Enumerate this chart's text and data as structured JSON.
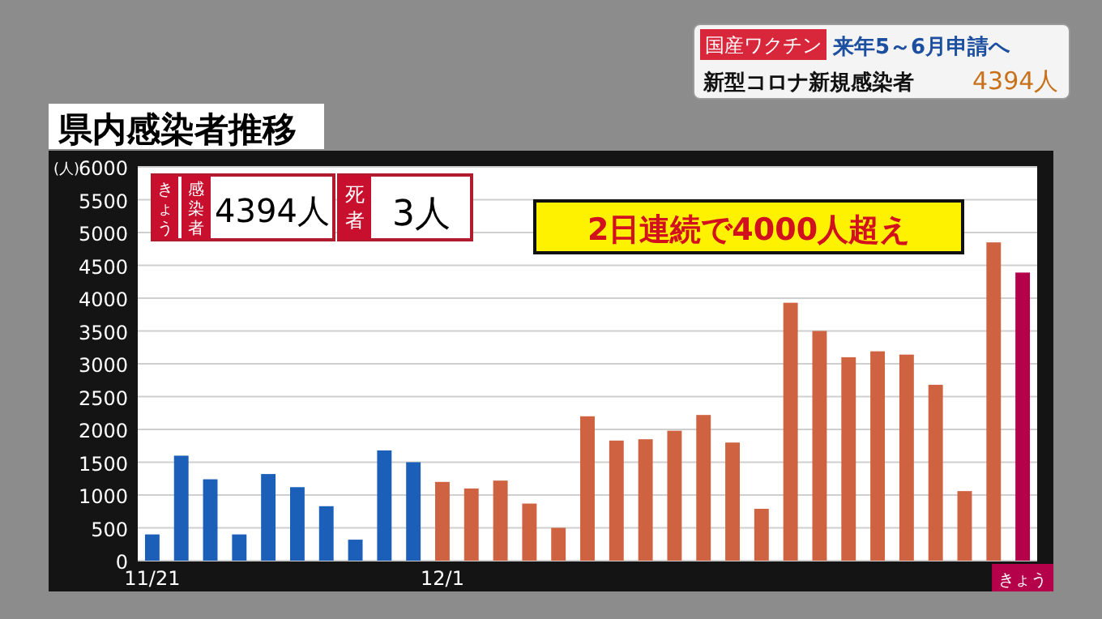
{
  "chart_data": {
    "type": "bar",
    "title": "県内感染者推移",
    "ylabel": "(人)",
    "categories": [
      "11/21",
      null,
      null,
      null,
      null,
      null,
      null,
      null,
      null,
      null,
      "12/1",
      null,
      null,
      null,
      null,
      null,
      null,
      null,
      null,
      null,
      null,
      null,
      null,
      null,
      null,
      null,
      null,
      null,
      null,
      null,
      "きょう"
    ],
    "values": [
      400,
      1600,
      1240,
      400,
      1320,
      1120,
      830,
      320,
      1680,
      1500,
      1200,
      1100,
      1220,
      870,
      500,
      2200,
      1830,
      1850,
      1980,
      2220,
      1800,
      790,
      3930,
      3500,
      3100,
      3190,
      3140,
      2680,
      1060,
      4850,
      4390
    ],
    "colors": [
      "#1b5fb8",
      "#1b5fb8",
      "#1b5fb8",
      "#1b5fb8",
      "#1b5fb8",
      "#1b5fb8",
      "#1b5fb8",
      "#1b5fb8",
      "#1b5fb8",
      "#1b5fb8",
      "#cf6341",
      "#cf6341",
      "#cf6341",
      "#cf6341",
      "#cf6341",
      "#cf6341",
      "#cf6341",
      "#cf6341",
      "#cf6341",
      "#cf6341",
      "#cf6341",
      "#cf6341",
      "#cf6341",
      "#cf6341",
      "#cf6341",
      "#cf6341",
      "#cf6341",
      "#cf6341",
      "#cf6341",
      "#cf6341",
      "#b5004a"
    ],
    "ylim": [
      0,
      6000
    ],
    "yticks": [
      0,
      500,
      1000,
      1500,
      2000,
      2500,
      3000,
      3500,
      4000,
      4500,
      5000,
      5500,
      6000
    ],
    "grid": "y",
    "annotations": [
      "国産ワクチン",
      "来年5～6月申請へ",
      "新型コロナ新規感染者",
      "4394人",
      "きょう",
      "感染者",
      "4394人",
      "死者",
      "3人",
      "2日連続で4000人超え"
    ]
  }
}
